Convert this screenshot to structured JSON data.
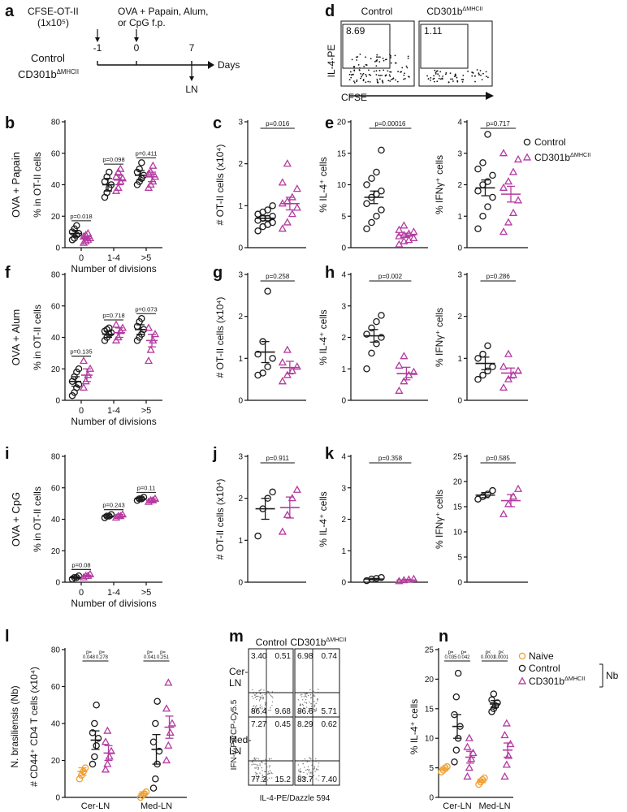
{
  "colors": {
    "control": "#1a1a1a",
    "cd301b": "#b43aa0",
    "naive": "#f0a030",
    "axis": "#111111"
  },
  "panel_letters": [
    "a",
    "b",
    "c",
    "d",
    "e",
    "f",
    "g",
    "h",
    "i",
    "j",
    "k",
    "l",
    "m",
    "n"
  ],
  "schematic": {
    "cfse_label": "CFSE-OT-II",
    "cells": "(1x10⁵)",
    "immunization_line1": "OVA + Papain, Alum,",
    "immunization_line2": "or CpG f.p.",
    "ticks": [
      "-1",
      "0",
      "7"
    ],
    "days": "Days",
    "ln": "LN",
    "group_control": "Control",
    "group_cd301b": "CD301b",
    "cd301b_sup": "ΔMHCII"
  },
  "flow_d": {
    "ylabel": "IL-4-PE",
    "xlabel": "CFSE",
    "titles": [
      "Control",
      "CD301b"
    ],
    "title_sup": "ΔMHCII",
    "values": [
      "8.69",
      "1.11"
    ]
  },
  "legend_top": {
    "items": [
      "Control",
      "CD301b"
    ],
    "sup": "ΔMHCII"
  },
  "legend_n": {
    "items": [
      "Naive",
      "Control",
      "CD301b"
    ],
    "sup": "ΔMHCII",
    "bracket_label": "Nb"
  },
  "row_labels": [
    "OVA + Papain",
    "OVA + Alum",
    "OVA + CpG"
  ],
  "division_xlabel": "Number of divisions",
  "flow_m": {
    "titles": [
      "Control",
      "CD301b"
    ],
    "title_sup": "ΔMHCII",
    "rows": [
      "Cer-\nLN",
      "Med-\nLN"
    ],
    "ylabel": "IFN-γ-PerCP-Cy5.5",
    "xlabel": "IL-4-PE/Dazzle 594",
    "quads": [
      [
        "3.40",
        "0.51",
        "86.4",
        "9.68"
      ],
      [
        "6.98",
        "0.74",
        "86.6",
        "5.71"
      ],
      [
        "7.27",
        "0.45",
        "77.2",
        "15.2"
      ],
      [
        "8.29",
        "0.62",
        "83.7",
        "7.40"
      ]
    ]
  },
  "chart_data": [
    {
      "id": "b",
      "type": "scatter",
      "ylabel": "% in OT-II cells",
      "xlabel": "Number of divisions",
      "ylim": [
        0,
        80
      ],
      "yticks": [
        0,
        20,
        40,
        60,
        80
      ],
      "categories": [
        "0",
        "1-4",
        ">5"
      ],
      "series": [
        {
          "name": "Control",
          "mean": [
            9,
            40,
            46
          ],
          "sem": [
            2,
            4,
            3
          ],
          "values": [
            [
              5,
              6,
              8,
              9,
              10,
              12,
              14
            ],
            [
              32,
              35,
              38,
              40,
              42,
              45,
              48
            ],
            [
              40,
              42,
              44,
              46,
              48,
              50,
              54
            ]
          ]
        },
        {
          "name": "CD301b ΔMHCII",
          "mean": [
            6,
            43,
            45
          ],
          "sem": [
            1,
            3,
            3
          ],
          "values": [
            [
              3,
              4,
              5,
              6,
              7,
              8,
              9
            ],
            [
              36,
              38,
              42,
              44,
              45,
              48,
              50
            ],
            [
              38,
              40,
              42,
              45,
              47,
              48,
              52
            ]
          ]
        }
      ],
      "pvalues": [
        "p=0.018",
        "p=0.098",
        "p=0.411"
      ]
    },
    {
      "id": "c",
      "type": "scatter",
      "ylabel": "# OT-II cells (x10⁴)",
      "ylim": [
        0,
        3
      ],
      "yticks": [
        0,
        1,
        2,
        3
      ],
      "categories": [
        "Control",
        "CD301b ΔMHCII"
      ],
      "series": [
        {
          "name": "Control",
          "mean": 0.7,
          "sem": 0.06,
          "values": [
            0.4,
            0.5,
            0.55,
            0.6,
            0.65,
            0.7,
            0.7,
            0.75,
            0.8,
            0.85,
            0.9,
            1.0
          ]
        },
        {
          "name": "CD301b ΔMHCII",
          "mean": 1.05,
          "sem": 0.15,
          "values": [
            0.45,
            0.6,
            0.8,
            0.95,
            1.05,
            1.1,
            1.2,
            1.4,
            1.55,
            2.0
          ]
        }
      ],
      "pvalue": "p=0.016"
    },
    {
      "id": "e1",
      "type": "scatter",
      "ylabel": "% IL-4⁺ cells",
      "ylim": [
        0,
        20
      ],
      "yticks": [
        0,
        5,
        10,
        15,
        20
      ],
      "categories": [
        "Control",
        "CD301b ΔMHCII"
      ],
      "series": [
        {
          "name": "Control",
          "mean": 8,
          "sem": 1,
          "values": [
            3,
            4,
            5,
            6,
            7,
            8,
            8.5,
            9,
            10,
            11,
            12,
            15.5
          ]
        },
        {
          "name": "CD301b ΔMHCII",
          "mean": 2,
          "sem": 0.3,
          "values": [
            0.5,
            1,
            1.2,
            1.5,
            1.8,
            2,
            2.2,
            2.5,
            2.8,
            3.5
          ]
        }
      ],
      "pvalue": "p=0.00016"
    },
    {
      "id": "e2",
      "type": "scatter",
      "ylabel": "% IFNγ⁺ cells",
      "ylim": [
        0,
        4
      ],
      "yticks": [
        0,
        1,
        2,
        3,
        4
      ],
      "categories": [
        "Control",
        "CD301b ΔMHCII"
      ],
      "series": [
        {
          "name": "Control",
          "mean": 1.9,
          "sem": 0.25,
          "values": [
            0.6,
            1.0,
            1.3,
            1.6,
            1.8,
            2.0,
            2.1,
            2.3,
            2.5,
            2.7,
            3.6
          ]
        },
        {
          "name": "CD301b ΔMHCII",
          "mean": 1.7,
          "sem": 0.25,
          "values": [
            0.5,
            0.8,
            1.1,
            1.5,
            1.9,
            2.1,
            2.4,
            2.8,
            3.0
          ]
        }
      ],
      "pvalue": "p=0.717"
    },
    {
      "id": "f",
      "type": "scatter",
      "ylabel": "% in OT-II cells",
      "xlabel": "Number of divisions",
      "ylim": [
        0,
        80
      ],
      "yticks": [
        0,
        20,
        40,
        60,
        80
      ],
      "categories": [
        "0",
        "1-4",
        ">5"
      ],
      "series": [
        {
          "name": "Control",
          "mean": [
            12,
            42,
            45
          ],
          "sem": [
            3,
            2,
            3
          ],
          "values": [
            [
              3,
              5,
              8,
              10,
              12,
              15,
              18,
              20
            ],
            [
              38,
              40,
              42,
              43,
              44,
              45,
              46
            ],
            [
              38,
              40,
              42,
              45,
              47,
              50,
              52
            ]
          ]
        },
        {
          "name": "CD301b ΔMHCII",
          "mean": [
            16,
            43,
            38
          ],
          "sem": [
            4,
            3,
            4
          ],
          "values": [
            [
              8,
              12,
              16,
              20,
              25
            ],
            [
              38,
              40,
              44,
              46,
              48
            ],
            [
              25,
              32,
              38,
              42,
              46
            ]
          ]
        }
      ],
      "pvalues": [
        "p=0.135",
        "p=0.718",
        "p=0.073"
      ]
    },
    {
      "id": "g",
      "type": "scatter",
      "ylabel": "# OT-II cells (x10⁴)",
      "ylim": [
        0,
        3
      ],
      "yticks": [
        0,
        1,
        2,
        3
      ],
      "categories": [
        "Control",
        "CD301b ΔMHCII"
      ],
      "series": [
        {
          "name": "Control",
          "mean": 1.15,
          "sem": 0.25,
          "values": [
            0.6,
            0.65,
            0.8,
            1.0,
            1.1,
            1.4,
            2.6
          ]
        },
        {
          "name": "CD301b ΔMHCII",
          "mean": 0.78,
          "sem": 0.15,
          "values": [
            0.45,
            0.6,
            0.7,
            0.8,
            0.9,
            1.2
          ]
        }
      ],
      "pvalue": "p=0.258"
    },
    {
      "id": "h1",
      "type": "scatter",
      "ylabel": "% IL-4⁺ cells",
      "ylim": [
        0,
        4
      ],
      "yticks": [
        0,
        1,
        2,
        3,
        4
      ],
      "categories": [
        "Control",
        "CD301b ΔMHCII"
      ],
      "series": [
        {
          "name": "Control",
          "mean": 2.05,
          "sem": 0.2,
          "values": [
            1.0,
            1.5,
            1.8,
            2.0,
            2.1,
            2.3,
            2.5,
            2.7
          ]
        },
        {
          "name": "CD301b ΔMHCII",
          "mean": 0.85,
          "sem": 0.2,
          "values": [
            0.3,
            0.6,
            0.8,
            0.9,
            1.1,
            1.4
          ]
        }
      ],
      "pvalue": "p=0.002"
    },
    {
      "id": "h2",
      "type": "scatter",
      "ylabel": "% IFNγ⁺ cells",
      "ylim": [
        0,
        3
      ],
      "yticks": [
        0,
        1,
        2,
        3
      ],
      "categories": [
        "Control",
        "CD301b ΔMHCII"
      ],
      "series": [
        {
          "name": "Control",
          "mean": 0.88,
          "sem": 0.15,
          "values": [
            0.5,
            0.6,
            0.7,
            0.8,
            1.0,
            1.1,
            1.3
          ]
        },
        {
          "name": "CD301b ΔMHCII",
          "mean": 0.65,
          "sem": 0.12,
          "values": [
            0.3,
            0.5,
            0.6,
            0.7,
            0.8,
            1.1
          ]
        }
      ],
      "pvalue": "p=0.286"
    },
    {
      "id": "i",
      "type": "scatter",
      "ylabel": "% in OT-II cells",
      "xlabel": "Number of divisions",
      "ylim": [
        0,
        80
      ],
      "yticks": [
        0,
        20,
        40,
        60,
        80
      ],
      "categories": [
        "0",
        "1-4",
        ">5"
      ],
      "series": [
        {
          "name": "Control",
          "mean": [
            3,
            42,
            53
          ],
          "sem": [
            0.5,
            1,
            1
          ],
          "values": [
            [
              2,
              3,
              3,
              4
            ],
            [
              41,
              42,
              42,
              43
            ],
            [
              52,
              53,
              53,
              54
            ]
          ]
        },
        {
          "name": "CD301b ΔMHCII",
          "mean": [
            4,
            42,
            52
          ],
          "sem": [
            0.5,
            1,
            1
          ],
          "values": [
            [
              3,
              4,
              4,
              5
            ],
            [
              41,
              42,
              42,
              43
            ],
            [
              51,
              52,
              52,
              53
            ]
          ]
        }
      ],
      "pvalues": [
        "p=0.08",
        "p=0.243",
        "p=0.11"
      ]
    },
    {
      "id": "j",
      "type": "scatter",
      "ylabel": "# OT-II cells (x10⁴)",
      "ylim": [
        0,
        3
      ],
      "yticks": [
        0,
        1,
        2,
        3
      ],
      "categories": [
        "Control",
        "CD301b ΔMHCII"
      ],
      "series": [
        {
          "name": "Control",
          "mean": 1.75,
          "sem": 0.25,
          "values": [
            1.1,
            1.75,
            2.0,
            2.15
          ]
        },
        {
          "name": "CD301b ΔMHCII",
          "mean": 1.78,
          "sem": 0.25,
          "values": [
            1.2,
            1.6,
            2.0,
            2.2
          ]
        }
      ],
      "pvalue": "p=0.911"
    },
    {
      "id": "k1",
      "type": "scatter",
      "ylabel": "% IL-4⁺ cells",
      "ylim": [
        0,
        4
      ],
      "yticks": [
        0,
        1,
        2,
        3,
        4
      ],
      "categories": [
        "Control",
        "CD301b ΔMHCII"
      ],
      "series": [
        {
          "name": "Control",
          "mean": 0.1,
          "sem": 0.02,
          "values": [
            0.05,
            0.1,
            0.12,
            0.15
          ]
        },
        {
          "name": "CD301b ΔMHCII",
          "mean": 0.07,
          "sem": 0.02,
          "values": [
            0.03,
            0.06,
            0.08,
            0.1
          ]
        }
      ],
      "pvalue": "p=0.358"
    },
    {
      "id": "k2",
      "type": "scatter",
      "ylabel": "% IFNγ⁺ cells",
      "ylim": [
        0,
        25
      ],
      "yticks": [
        0,
        5,
        10,
        15,
        20,
        25
      ],
      "categories": [
        "Control",
        "CD301b ΔMHCII"
      ],
      "series": [
        {
          "name": "Control",
          "mean": 17.3,
          "sem": 0.5,
          "values": [
            16.5,
            17,
            17.5,
            18.2
          ]
        },
        {
          "name": "CD301b ΔMHCII",
          "mean": 16.2,
          "sem": 1.2,
          "values": [
            13.5,
            15.5,
            17,
            18.5
          ]
        }
      ],
      "pvalue": "p=0.585"
    },
    {
      "id": "l",
      "type": "scatter",
      "title": "N. brasiliensis (Nb)",
      "ylabel": "# CD44⁺ CD4 T cells (x10⁴)",
      "ylim": [
        0,
        80
      ],
      "yticks": [
        0,
        20,
        40,
        60,
        80
      ],
      "categories": [
        "Cer-LN",
        "Med-LN"
      ],
      "series": [
        {
          "name": "Naive",
          "mean": [
            14,
            2
          ],
          "sem": [
            2,
            1
          ],
          "values": [
            [
              10,
              12,
              14,
              16
            ],
            [
              0,
              1,
              2,
              3
            ]
          ]
        },
        {
          "name": "Control",
          "mean": [
            31,
            26
          ],
          "sem": [
            5,
            8
          ],
          "values": [
            [
              18,
              22,
              28,
              32,
              35,
              40,
              50
            ],
            [
              5,
              10,
              18,
              25,
              30,
              40,
              52
            ]
          ]
        },
        {
          "name": "CD301b ΔMHCII",
          "mean": [
            24,
            38
          ],
          "sem": [
            4,
            6
          ],
          "values": [
            [
              15,
              18,
              22,
              25,
              30,
              36
            ],
            [
              20,
              28,
              35,
              40,
              48,
              62
            ]
          ]
        }
      ],
      "pvalues": [
        [
          "p=",
          "0.048",
          "p=",
          "0.278"
        ],
        [
          "p=",
          "0.041",
          "p=",
          "0.251"
        ]
      ]
    },
    {
      "id": "n",
      "type": "scatter",
      "ylabel": "% IL-4⁺ cells",
      "ylim": [
        0,
        25
      ],
      "yticks": [
        0,
        5,
        10,
        15,
        20,
        25
      ],
      "categories": [
        "Cer-LN",
        "Med-LN"
      ],
      "series": [
        {
          "name": "Naive",
          "mean": [
            4.8,
            2.8
          ],
          "sem": [
            0.3,
            0.3
          ],
          "values": [
            [
              4.3,
              4.6,
              5,
              5.2
            ],
            [
              2.2,
              2.6,
              3,
              3.3
            ]
          ]
        },
        {
          "name": "Control",
          "mean": [
            12,
            15.8
          ],
          "sem": [
            2,
            0.6
          ],
          "values": [
            [
              6,
              8,
              10,
              12,
              14,
              17,
              21
            ],
            [
              14.5,
              15,
              15.5,
              16,
              16.5,
              17.5
            ]
          ]
        },
        {
          "name": "CD301b ΔMHCII",
          "mean": [
            6.8,
            8
          ],
          "sem": [
            1,
            1.2
          ],
          "values": [
            [
              3.5,
              5,
              6.5,
              7.5,
              8.5,
              10
            ],
            [
              3.5,
              5.5,
              7,
              9,
              10.5,
              12.5
            ]
          ]
        }
      ],
      "pvalues": [
        [
          "p=",
          "0.035",
          "p=",
          "0.042"
        ],
        [
          "p<",
          "0.0001",
          "p<",
          "0.0001"
        ]
      ]
    }
  ]
}
